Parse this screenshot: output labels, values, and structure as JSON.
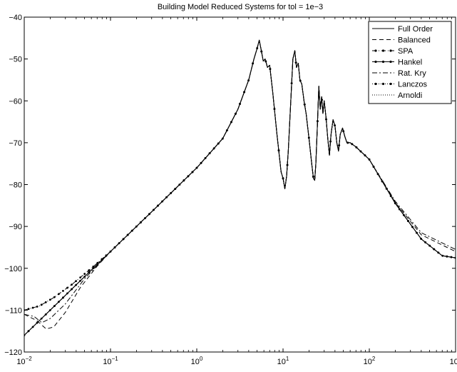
{
  "chart_data": {
    "type": "line",
    "title": "Building Model Reduced Systems for tol = 1e−3",
    "xlabel": "",
    "ylabel": "",
    "xscale": "log",
    "xlim": [
      0.01,
      1000
    ],
    "ylim": [
      -120,
      -40
    ],
    "grid": false,
    "legend_position": "top-right",
    "x_ticks": [
      {
        "value": 0.01,
        "base": "10",
        "exp": "−2"
      },
      {
        "value": 0.1,
        "base": "10",
        "exp": "−1"
      },
      {
        "value": 1,
        "base": "10",
        "exp": "0"
      },
      {
        "value": 10,
        "base": "10",
        "exp": "1"
      },
      {
        "value": 100,
        "base": "10",
        "exp": "2"
      },
      {
        "value": 1000,
        "base": "10",
        "exp": "3"
      }
    ],
    "y_ticks": [
      {
        "value": -40,
        "label": "−40"
      },
      {
        "value": -50,
        "label": "−50"
      },
      {
        "value": -60,
        "label": "−60"
      },
      {
        "value": -70,
        "label": "−70"
      },
      {
        "value": -80,
        "label": "−80"
      },
      {
        "value": -90,
        "label": "−90"
      },
      {
        "value": -100,
        "label": "−100"
      },
      {
        "value": -110,
        "label": "−110"
      },
      {
        "value": -120,
        "label": "−120"
      }
    ],
    "base_curve": [
      [
        0.01,
        -116.0
      ],
      [
        0.02,
        -110.0
      ],
      [
        0.05,
        -102.0
      ],
      [
        0.1,
        -96.0
      ],
      [
        0.3,
        -86.5
      ],
      [
        1.0,
        -76.0
      ],
      [
        2.0,
        -69.0
      ],
      [
        3.0,
        -62.0
      ],
      [
        4.0,
        -55.0
      ],
      [
        4.6,
        -50.0
      ],
      [
        5.0,
        -47.5
      ],
      [
        5.3,
        -45.5
      ],
      [
        5.6,
        -48.0
      ],
      [
        5.9,
        -50.5
      ],
      [
        6.2,
        -50.0
      ],
      [
        6.6,
        -52.0
      ],
      [
        7.0,
        -51.5
      ],
      [
        7.6,
        -58.0
      ],
      [
        8.5,
        -68.0
      ],
      [
        9.5,
        -77.0
      ],
      [
        10.0,
        -78.5
      ],
      [
        10.5,
        -81.0
      ],
      [
        11.0,
        -78.0
      ],
      [
        11.5,
        -72.0
      ],
      [
        12.3,
        -60.0
      ],
      [
        13.0,
        -50.0
      ],
      [
        13.7,
        -48.0
      ],
      [
        14.3,
        -52.0
      ],
      [
        15.0,
        -51.0
      ],
      [
        15.7,
        -55.0
      ],
      [
        16.5,
        -56.0
      ],
      [
        17.5,
        -60.0
      ],
      [
        18.5,
        -63.0
      ],
      [
        20.0,
        -69.0
      ],
      [
        21.5,
        -75.0
      ],
      [
        22.5,
        -78.5
      ],
      [
        23.3,
        -79.0
      ],
      [
        24.0,
        -75.0
      ],
      [
        25.0,
        -66.0
      ],
      [
        26.0,
        -56.5
      ],
      [
        27.0,
        -62.0
      ],
      [
        28.0,
        -59.0
      ],
      [
        29.0,
        -63.0
      ],
      [
        30.0,
        -60.0
      ],
      [
        31.5,
        -64.0
      ],
      [
        33.0,
        -69.0
      ],
      [
        34.5,
        -73.0
      ],
      [
        36.0,
        -68.0
      ],
      [
        38.0,
        -64.5
      ],
      [
        40.0,
        -66.0
      ],
      [
        42.0,
        -70.0
      ],
      [
        44.0,
        -72.0
      ],
      [
        46.0,
        -68.0
      ],
      [
        49.0,
        -66.5
      ],
      [
        52.0,
        -68.5
      ],
      [
        55.0,
        -70.0
      ],
      [
        60.0,
        -70.0
      ],
      [
        70.0,
        -71.0
      ],
      [
        100.0,
        -74.0
      ],
      [
        200.0,
        -84.5
      ],
      [
        400.0,
        -93.0
      ],
      [
        700.0,
        -97.0
      ],
      [
        1000.0,
        -97.5
      ]
    ],
    "series": [
      {
        "name": "Full Order",
        "style": "solid"
      },
      {
        "name": "Balanced",
        "style": "dashed"
      },
      {
        "name": "SPA",
        "style": "dash-dot-marker"
      },
      {
        "name": "Hankel",
        "style": "solid-marker"
      },
      {
        "name": "Rat. Kry",
        "style": "dash-dot"
      },
      {
        "name": "Lanczos",
        "style": "dotted-marker"
      },
      {
        "name": "Arnoldi",
        "style": "dotted"
      }
    ],
    "low_frequency_deviations": {
      "Balanced": [
        [
          0.01,
          -111.0
        ],
        [
          0.014,
          -112.5
        ],
        [
          0.018,
          -114.5
        ],
        [
          0.022,
          -114.0
        ],
        [
          0.03,
          -110.5
        ],
        [
          0.045,
          -104.5
        ],
        [
          0.07,
          -99.5
        ],
        [
          0.1,
          -96.0
        ]
      ],
      "SPA": [
        [
          0.01,
          -110.0
        ],
        [
          0.015,
          -109.0
        ],
        [
          0.022,
          -107.0
        ],
        [
          0.035,
          -104.0
        ],
        [
          0.06,
          -100.0
        ],
        [
          0.1,
          -96.0
        ]
      ],
      "Rat. Kry": [
        [
          0.01,
          -111.0
        ],
        [
          0.013,
          -111.5
        ],
        [
          0.016,
          -113.0
        ],
        [
          0.02,
          -112.0
        ],
        [
          0.03,
          -108.5
        ],
        [
          0.05,
          -102.5
        ],
        [
          0.1,
          -96.0
        ]
      ]
    },
    "high_frequency_deviations": {
      "Rat. Kry": [
        [
          100.0,
          -74.0
        ],
        [
          200.0,
          -84.0
        ],
        [
          400.0,
          -91.5
        ],
        [
          1000.0,
          -95.5
        ]
      ],
      "Balanced": [
        [
          100.0,
          -74.0
        ],
        [
          200.0,
          -84.3
        ],
        [
          400.0,
          -92.0
        ],
        [
          1000.0,
          -96.0
        ]
      ]
    }
  }
}
